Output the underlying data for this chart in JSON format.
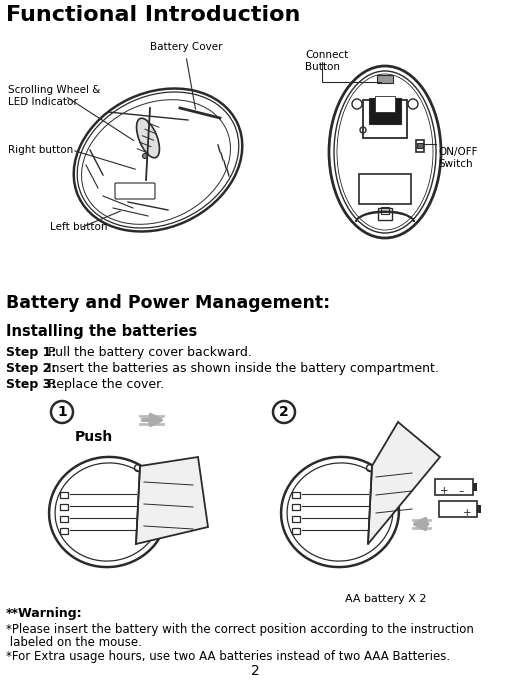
{
  "title": "Functional Introduction",
  "section1": "Battery and Power Management:",
  "subsection1": "Installing the batteries",
  "step1_bold": "Step 1:",
  "step1_text": " Pull the battery cover backward.",
  "step2_bold": "Step 2:",
  "step2_text": " Insert the batteries as shown inside the battery compartment.",
  "step3_bold": "Step 3:",
  "step3_text": " Replace the cover.",
  "warning_bold": "**Warning:",
  "warning_line1": "*Please insert the battery with the correct position according to the instruction",
  "warning_line2": " labeled on the mouse.",
  "warning_line3": "*For Extra usage hours, use two AA batteries instead of two AAA Batteries.",
  "push_label": "Push",
  "aa_battery_label": "AA battery X 2",
  "page_number": "2",
  "label_battery_cover": "Battery Cover",
  "label_connect_button": "Connect\nButton",
  "label_scrolling_wheel": "Scrolling Wheel &\nLED Indicator",
  "label_right_button": "Right button",
  "label_left_button": "Left button",
  "label_onoff": "ON/OFF\nSwitch",
  "bg_color": "#ffffff",
  "text_color": "#000000",
  "diagram_color": "#2a2a2a",
  "fig_width": 5.1,
  "fig_height": 6.81,
  "dpi": 100
}
